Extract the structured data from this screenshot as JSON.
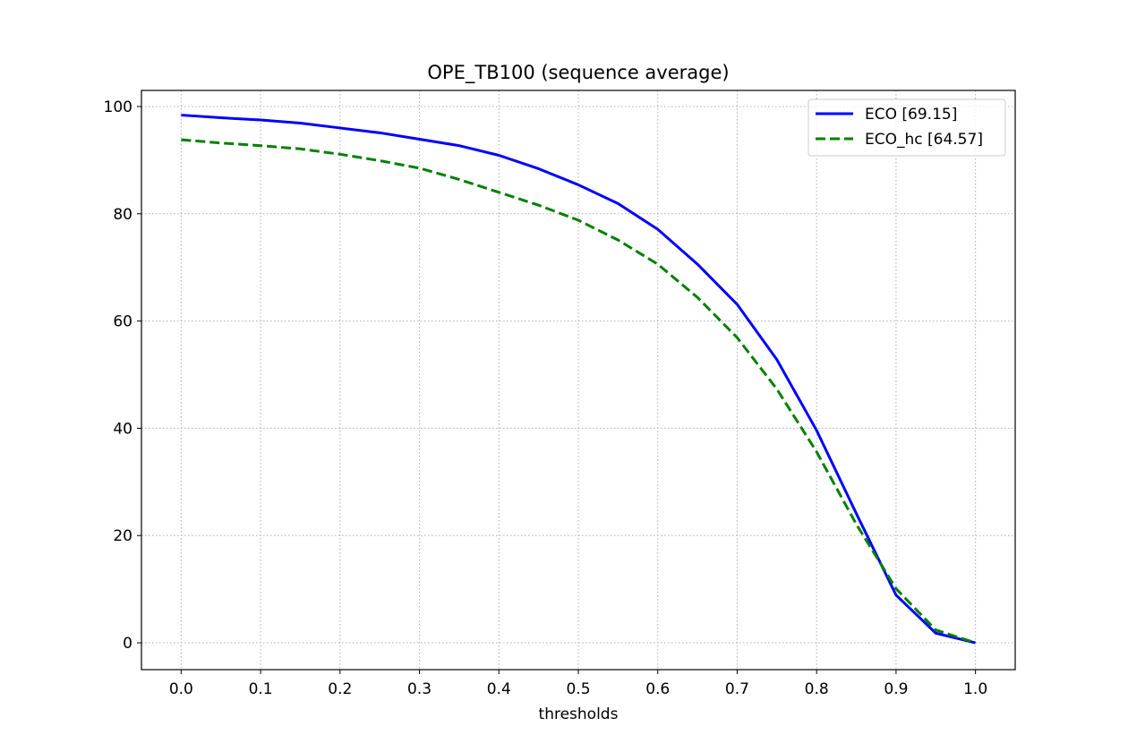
{
  "chart_data": {
    "type": "line",
    "title": "OPE_TB100 (sequence average)",
    "xlabel": "thresholds",
    "ylabel": "",
    "xlim": [
      -0.05,
      1.05
    ],
    "ylim": [
      -5,
      103
    ],
    "xticks": [
      0.0,
      0.1,
      0.2,
      0.3,
      0.4,
      0.5,
      0.6,
      0.7,
      0.8,
      0.9,
      1.0
    ],
    "xtick_labels": [
      "0.0",
      "0.1",
      "0.2",
      "0.3",
      "0.4",
      "0.5",
      "0.6",
      "0.7",
      "0.8",
      "0.9",
      "1.0"
    ],
    "yticks": [
      0,
      20,
      40,
      60,
      80,
      100
    ],
    "ytick_labels": [
      "0",
      "20",
      "40",
      "60",
      "80",
      "100"
    ],
    "grid": true,
    "legend_position": "top-right",
    "x": [
      0.0,
      0.05,
      0.1,
      0.15,
      0.2,
      0.25,
      0.3,
      0.35,
      0.4,
      0.45,
      0.5,
      0.55,
      0.6,
      0.65,
      0.7,
      0.75,
      0.8,
      0.85,
      0.9,
      0.95,
      1.0
    ],
    "series": [
      {
        "name": "ECO [69.15]",
        "color": "#0000ff",
        "style": "solid",
        "values": [
          98.4,
          97.9,
          97.5,
          96.9,
          96.0,
          95.1,
          93.9,
          92.7,
          90.9,
          88.4,
          85.4,
          81.9,
          77.1,
          70.6,
          63.1,
          52.8,
          39.6,
          24.1,
          8.9,
          1.8,
          0.0
        ]
      },
      {
        "name": "ECO_hc [64.57]",
        "color": "#008000",
        "style": "dashed",
        "values": [
          93.8,
          93.2,
          92.7,
          92.1,
          91.1,
          89.9,
          88.5,
          86.4,
          84.0,
          81.6,
          78.8,
          75.1,
          70.6,
          64.4,
          56.9,
          47.3,
          35.6,
          22.1,
          10.1,
          2.4,
          0.0
        ]
      }
    ]
  }
}
